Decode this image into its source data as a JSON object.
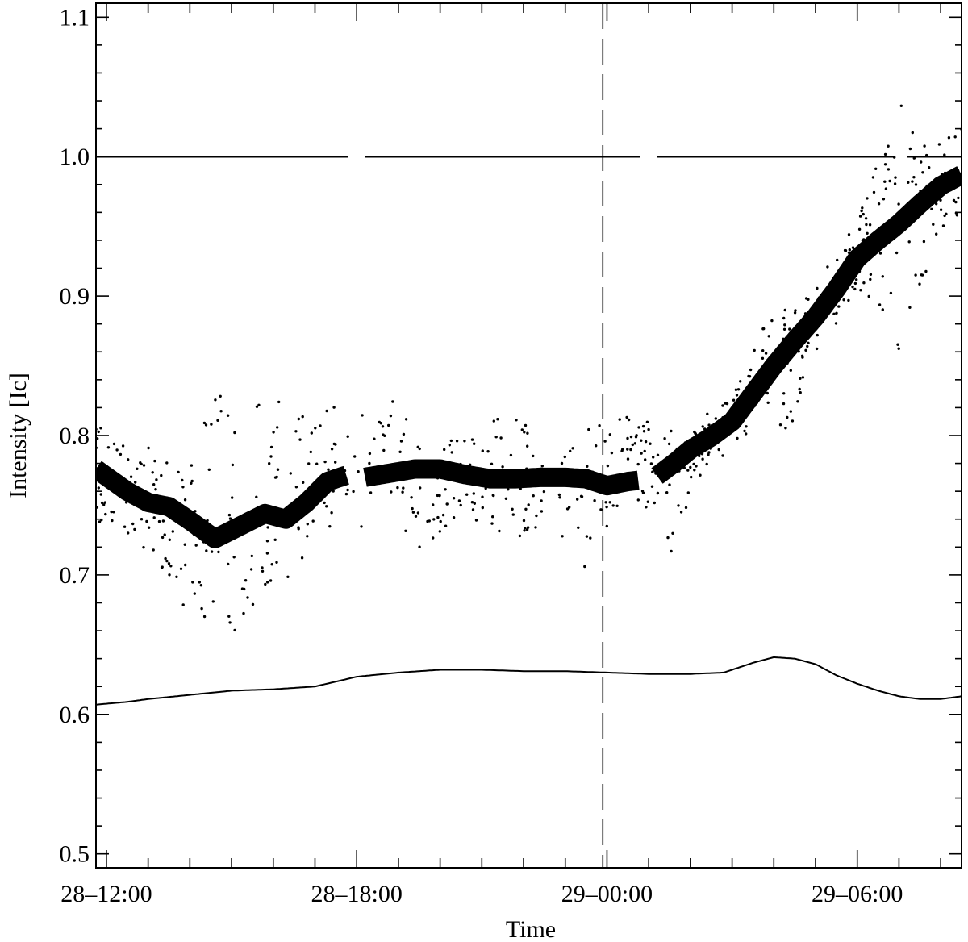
{
  "chart_data": {
    "type": "scatter",
    "xlabel": "Time",
    "ylabel": "Intensity [Ic]",
    "x_unit": "hours",
    "xlim": [
      11.75,
      32.5
    ],
    "ylim": [
      0.49,
      1.11
    ],
    "x_ticks": [
      {
        "value": 12,
        "label": "28–12:00"
      },
      {
        "value": 18,
        "label": "28–18:00"
      },
      {
        "value": 24,
        "label": "29–00:00"
      },
      {
        "value": 30,
        "label": "29–06:00"
      }
    ],
    "y_ticks": [
      {
        "value": 0.5,
        "label": "0.5"
      },
      {
        "value": 0.6,
        "label": "0.6"
      },
      {
        "value": 0.7,
        "label": "0.7"
      },
      {
        "value": 0.8,
        "label": "0.8"
      },
      {
        "value": 0.9,
        "label": "0.9"
      },
      {
        "value": 1.0,
        "label": "1.0"
      },
      {
        "value": 1.1,
        "label": "1.1"
      }
    ],
    "grid": false,
    "reference_line": {
      "y": 1.0,
      "gaps_x": [
        [
          17.8,
          18.2
        ],
        [
          24.8,
          25.2
        ],
        [
          30.9,
          31.2
        ]
      ]
    },
    "vertical_marker": {
      "x": 23.9,
      "style": "dashed"
    },
    "thick_curve_gaps_x": [
      [
        17.8,
        18.2
      ],
      [
        24.8,
        25.2
      ]
    ],
    "thick_curve": {
      "x": [
        11.75,
        12.5,
        13.0,
        13.5,
        14.0,
        14.6,
        15.2,
        15.8,
        16.3,
        16.8,
        17.3,
        17.8,
        18.2,
        18.8,
        19.4,
        20.0,
        20.6,
        21.2,
        21.8,
        22.4,
        23.0,
        23.5,
        24.0,
        24.5,
        24.8,
        25.2,
        25.6,
        26.0,
        26.5,
        27.0,
        27.5,
        28.0,
        28.5,
        29.0,
        29.5,
        30.0,
        30.5,
        31.0,
        31.5,
        32.0,
        32.5
      ],
      "y": [
        0.776,
        0.76,
        0.752,
        0.749,
        0.739,
        0.726,
        0.735,
        0.744,
        0.74,
        0.752,
        0.767,
        0.772,
        0.77,
        0.773,
        0.776,
        0.776,
        0.772,
        0.769,
        0.769,
        0.77,
        0.77,
        0.769,
        0.764,
        0.767,
        0.768,
        0.771,
        0.78,
        0.79,
        0.799,
        0.81,
        0.83,
        0.85,
        0.868,
        0.885,
        0.905,
        0.927,
        0.94,
        0.952,
        0.966,
        0.979,
        0.987
      ]
    },
    "thin_curve": {
      "x": [
        11.75,
        12.5,
        13.0,
        14.0,
        15.0,
        16.0,
        17.0,
        18.0,
        19.0,
        20.0,
        21.0,
        22.0,
        23.0,
        24.0,
        25.0,
        26.0,
        26.8,
        27.5,
        28.0,
        28.5,
        29.0,
        29.5,
        30.0,
        30.5,
        31.0,
        31.5,
        32.0,
        32.5
      ],
      "y": [
        0.607,
        0.609,
        0.611,
        0.614,
        0.617,
        0.618,
        0.62,
        0.627,
        0.63,
        0.632,
        0.632,
        0.631,
        0.631,
        0.63,
        0.629,
        0.629,
        0.63,
        0.637,
        0.641,
        0.64,
        0.636,
        0.628,
        0.622,
        0.617,
        0.613,
        0.611,
        0.611,
        0.613
      ]
    },
    "scatter_envelope": {
      "x": [
        11.75,
        12.5,
        13.0,
        13.5,
        14.0,
        14.6,
        15.2,
        15.8,
        16.3,
        16.8,
        17.3,
        17.8,
        18.2,
        18.8,
        19.4,
        20.0,
        20.6,
        21.2,
        21.8,
        22.4,
        23.0,
        23.5,
        24.0,
        24.5,
        25.2,
        25.6,
        26.0,
        26.5,
        27.0,
        27.5,
        28.0,
        28.5,
        29.0,
        29.5,
        30.0,
        30.5,
        31.0,
        31.5,
        32.0,
        32.5
      ],
      "lower": [
        0.74,
        0.72,
        0.715,
        0.7,
        0.665,
        0.66,
        0.655,
        0.69,
        0.695,
        0.71,
        0.73,
        0.74,
        0.73,
        0.74,
        0.715,
        0.73,
        0.74,
        0.735,
        0.725,
        0.735,
        0.715,
        0.705,
        0.735,
        0.76,
        0.74,
        0.705,
        0.76,
        0.78,
        0.79,
        0.805,
        0.81,
        0.8,
        0.86,
        0.88,
        0.905,
        0.89,
        0.86,
        0.905,
        0.94,
        0.96
      ],
      "upper": [
        0.81,
        0.795,
        0.8,
        0.785,
        0.785,
        0.84,
        0.815,
        0.83,
        0.83,
        0.815,
        0.82,
        0.83,
        0.82,
        0.84,
        0.8,
        0.795,
        0.8,
        0.81,
        0.82,
        0.805,
        0.8,
        0.805,
        0.815,
        0.815,
        0.815,
        0.81,
        0.8,
        0.82,
        0.83,
        0.86,
        0.9,
        0.89,
        0.91,
        0.93,
        0.96,
        1.0,
        1.04,
        1.01,
        1.01,
        1.02
      ]
    },
    "scatter_count": 720,
    "scatter_seed": 7
  }
}
